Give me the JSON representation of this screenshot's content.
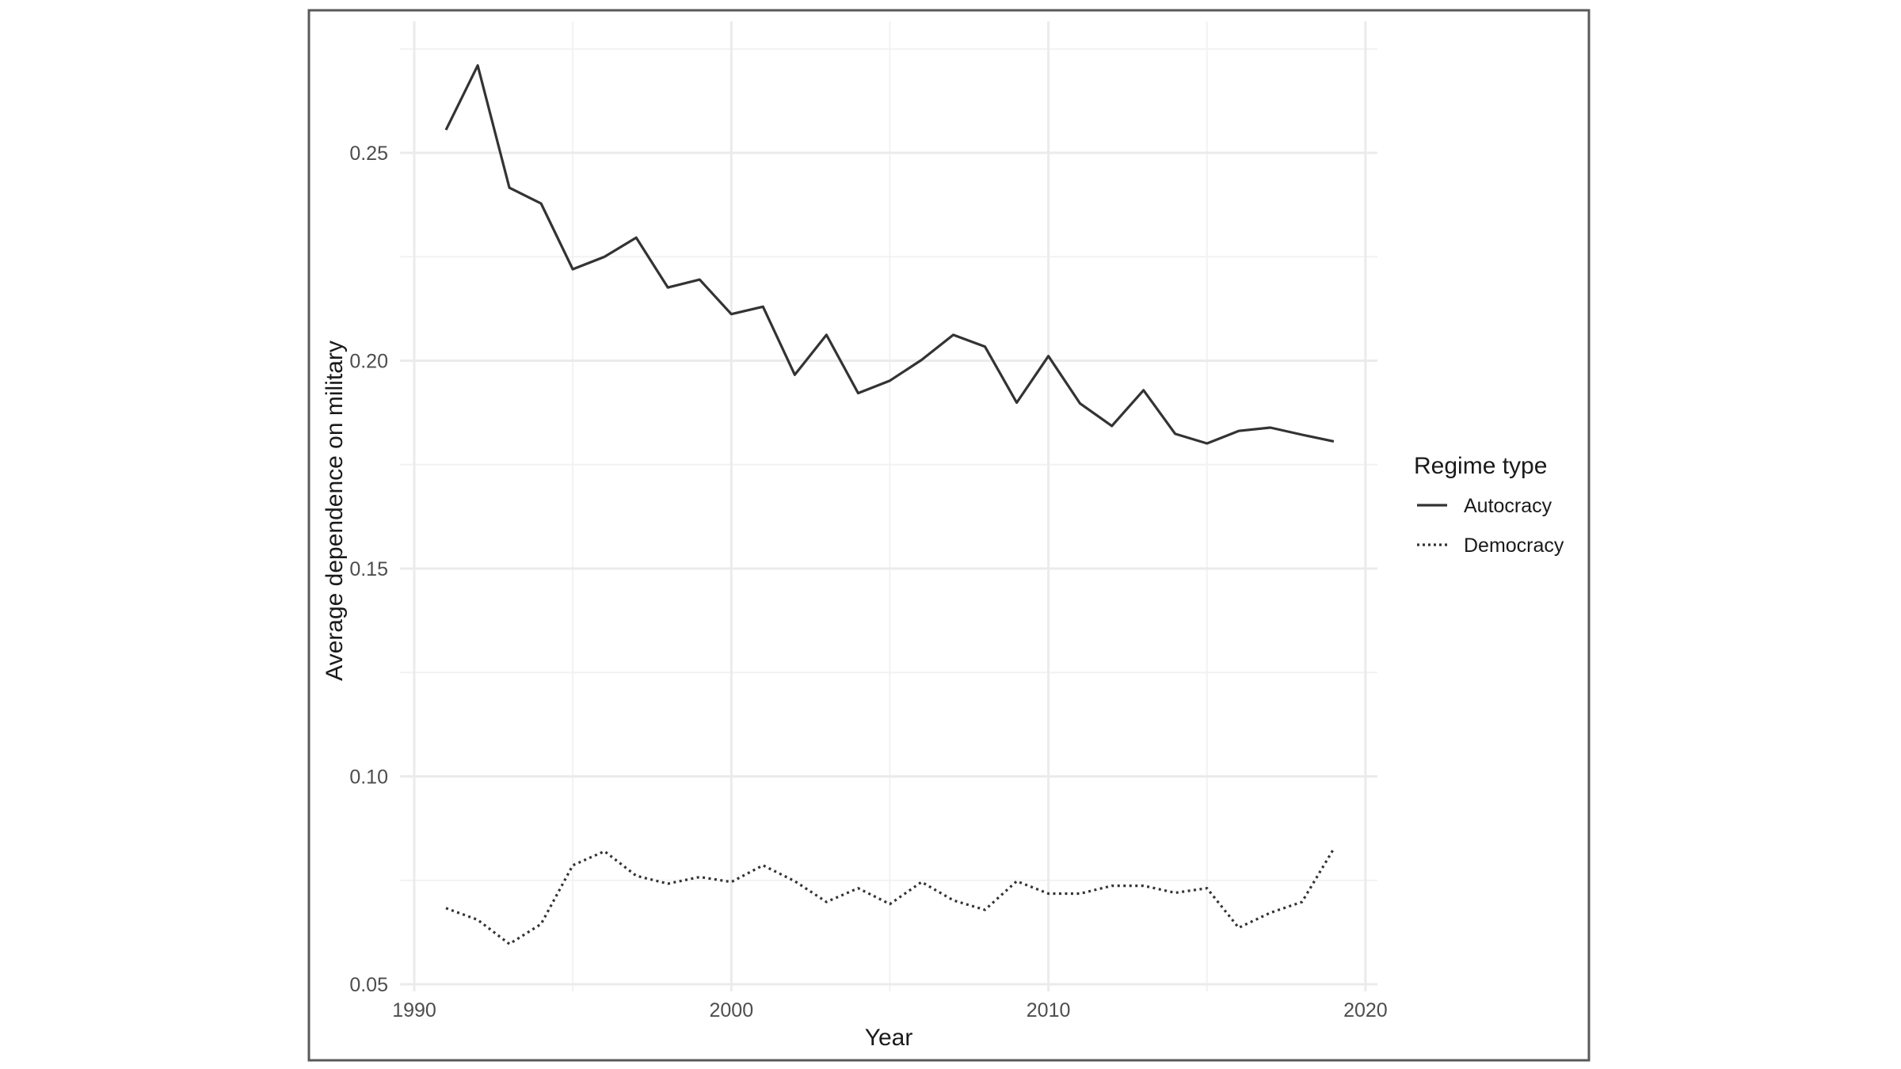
{
  "chart_data": {
    "type": "line",
    "title": "",
    "xlabel": "Year",
    "ylabel": "Average dependence on military",
    "xlim": [
      1990,
      2020
    ],
    "ylim": [
      0.05,
      0.275
    ],
    "x_ticks": [
      1990,
      2000,
      2010,
      2020
    ],
    "x_tick_labels": [
      "1990",
      "2000",
      "2010",
      "2020"
    ],
    "y_ticks": [
      0.05,
      0.1,
      0.15,
      0.2,
      0.25
    ],
    "y_tick_labels": [
      "0.05",
      "0.10",
      "0.15",
      "0.20",
      "0.25"
    ],
    "grid": true,
    "legend": {
      "title": "Regime type",
      "position": "right",
      "entries": [
        {
          "label": "Autocracy",
          "linetype": "solid"
        },
        {
          "label": "Democracy",
          "linetype": "dotted"
        }
      ]
    },
    "x": [
      1991,
      1992,
      1993,
      1994,
      1995,
      1996,
      1997,
      1998,
      1999,
      2000,
      2001,
      2002,
      2003,
      2004,
      2005,
      2006,
      2007,
      2008,
      2009,
      2010,
      2011,
      2012,
      2013,
      2014,
      2015,
      2016,
      2017,
      2018,
      2019
    ],
    "series": [
      {
        "name": "Autocracy",
        "linetype": "solid",
        "values": [
          0.2555,
          0.271,
          0.2416,
          0.2378,
          0.222,
          0.225,
          0.2296,
          0.2176,
          0.2195,
          0.2112,
          0.213,
          0.1966,
          0.2062,
          0.1922,
          0.1952,
          0.2002,
          0.2062,
          0.2034,
          0.1899,
          0.2011,
          0.1897,
          0.1843,
          0.1929,
          0.1824,
          0.1801,
          0.1831,
          0.1839,
          0.1822,
          0.1806
        ]
      },
      {
        "name": "Democracy",
        "linetype": "dotted",
        "values": [
          0.0683,
          0.0655,
          0.0597,
          0.0645,
          0.0786,
          0.082,
          0.0761,
          0.0742,
          0.0758,
          0.0746,
          0.0786,
          0.0748,
          0.0698,
          0.0731,
          0.0693,
          0.0746,
          0.0702,
          0.0679,
          0.0748,
          0.0718,
          0.0718,
          0.0737,
          0.0737,
          0.072,
          0.0731,
          0.0636,
          0.0672,
          0.0698,
          0.0826
        ]
      }
    ]
  }
}
